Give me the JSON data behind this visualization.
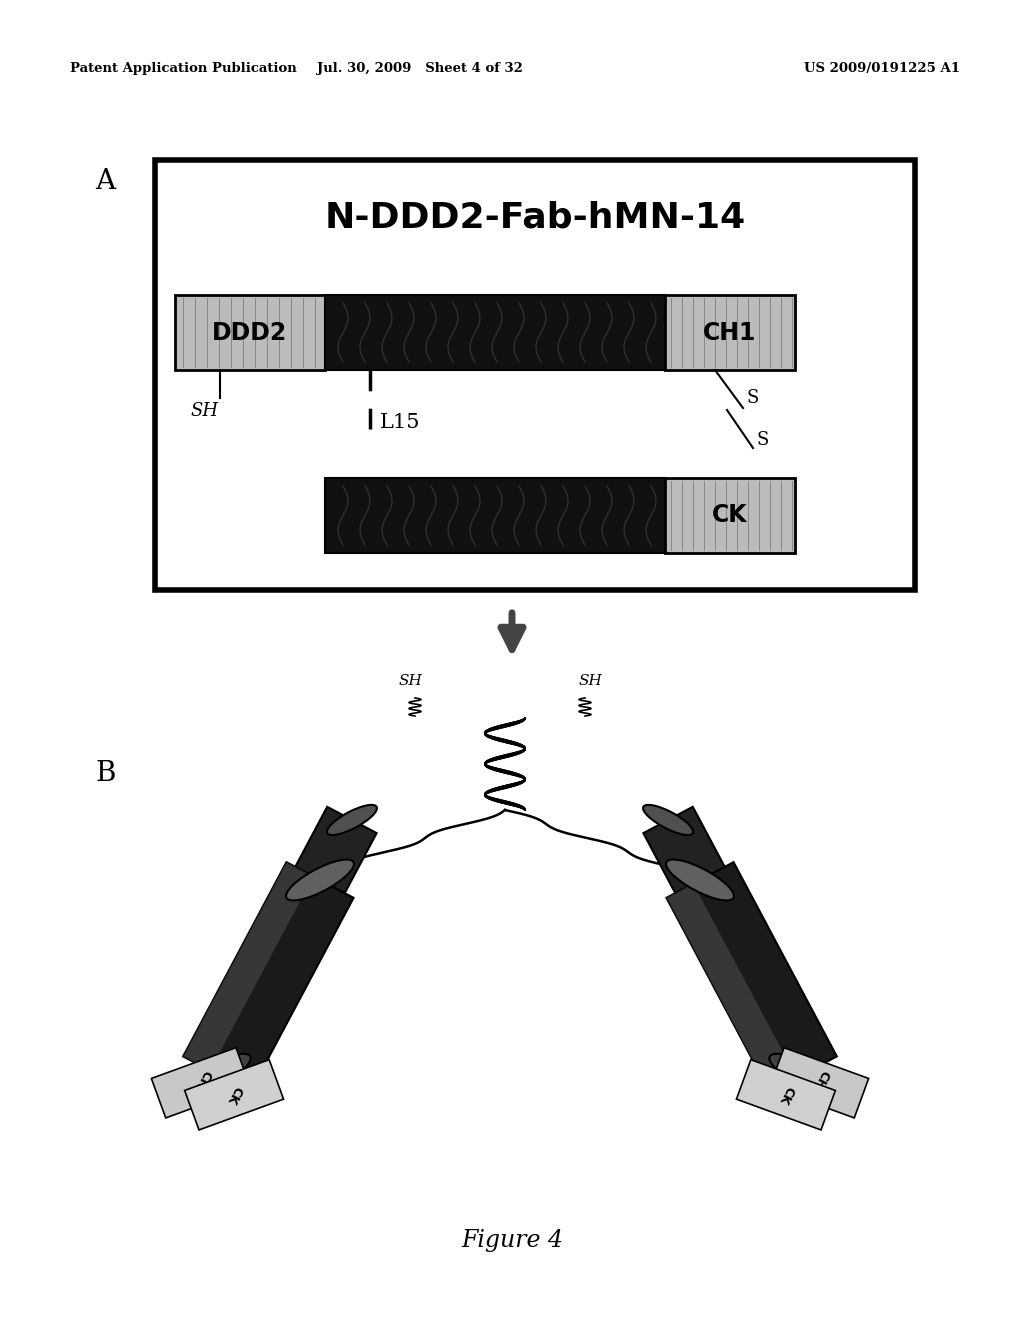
{
  "header_left": "Patent Application Publication",
  "header_mid": "Jul. 30, 2009   Sheet 4 of 32",
  "header_right": "US 2009/0191225 A1",
  "title_A": "N-DDD2-Fab-hMN-14",
  "label_A": "A",
  "label_B": "B",
  "label_DDD2": "DDD2",
  "label_CH1": "CH1",
  "label_CK": "CK",
  "label_SH_left": "SH",
  "label_L15": "L15",
  "label_S_top": "S",
  "label_S_bot": "S",
  "label_SH_B_left": "SH",
  "label_SH_B_right": "SH",
  "figure_caption": "Figure 4",
  "bg_color": "#ffffff",
  "dark_bar_color": "#111111",
  "gray_box_color": "#bbbbbb",
  "box_border": "#000000",
  "arrow_color": "#444444"
}
